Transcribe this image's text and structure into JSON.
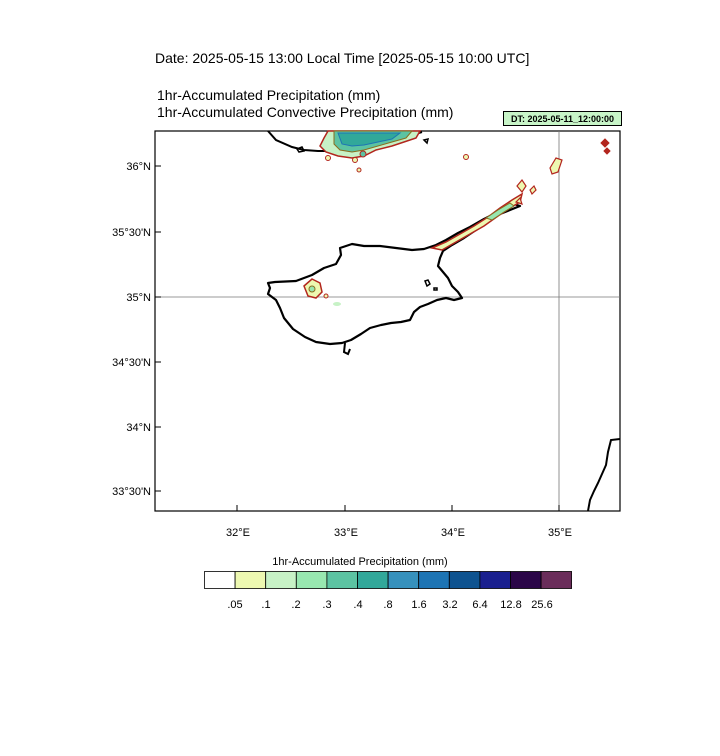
{
  "header": {
    "date_line": "Date: 2025-05-15  13:00 Local Time [2025-05-15  10:00 UTC]",
    "field_1": "1hr-Accumulated Precipitation   (mm)",
    "field_2": "1hr-Accumulated Convective Precipitation   (mm)",
    "dt_badge": "DT: 2025-05-11_12:00:00"
  },
  "map": {
    "lat_ticks": [
      "36°N",
      "35°30'N",
      "35°N",
      "34°30'N",
      "34°N",
      "33°30'N"
    ],
    "lon_ticks": [
      "32°E",
      "33°E",
      "34°E",
      "35°E"
    ],
    "gridlines": [
      "35°N",
      "35°E"
    ],
    "region": "Cyprus / Eastern Mediterranean"
  },
  "colorbar": {
    "title": "1hr-Accumulated Precipitation  (mm)",
    "levels": [
      ".05",
      ".1",
      ".2",
      ".3",
      ".4",
      ".8",
      "1.6",
      "3.2",
      "6.4",
      "12.8",
      "25.6"
    ],
    "colors": [
      "#ffffff",
      "#edf8b1",
      "#c7f2c6",
      "#98e7b0",
      "#5cc3a2",
      "#31a89a",
      "#3691bd",
      "#1d74b4",
      "#0e5390",
      "#1a1f8f",
      "#2b0648",
      "#6a2d5a"
    ]
  }
}
